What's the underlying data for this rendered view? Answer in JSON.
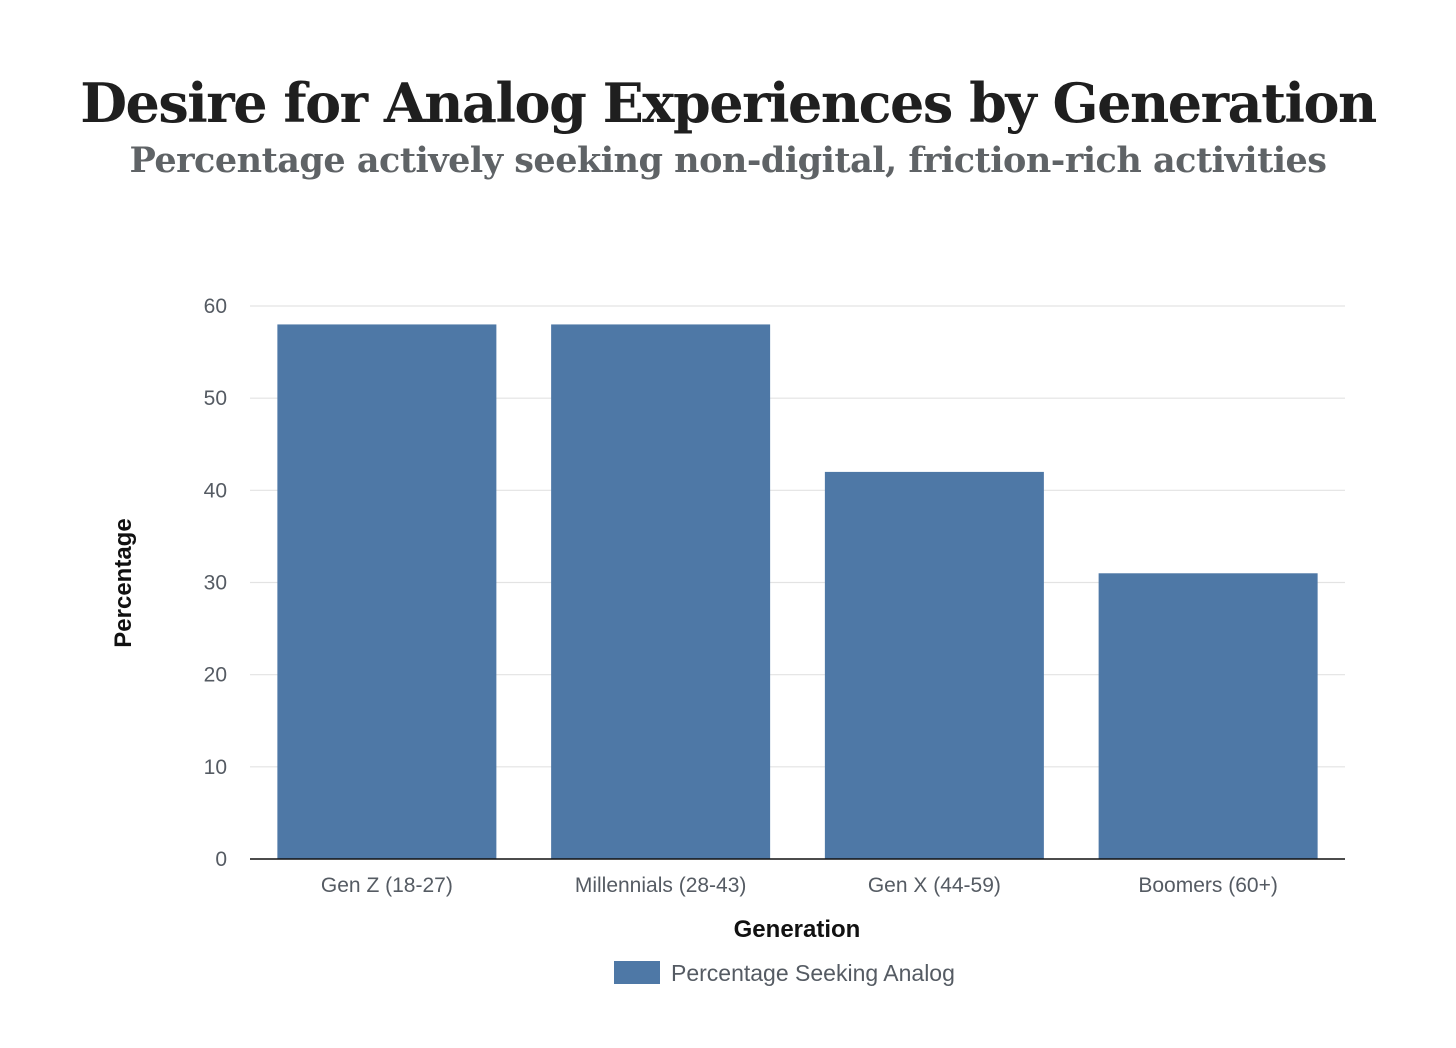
{
  "chart_data": {
    "type": "bar",
    "title": "Desire for Analog Experiences by Generation",
    "subtitle": "Percentage actively seeking non-digital, friction-rich activities",
    "categories": [
      "Gen Z (18-27)",
      "Millennials (28-43)",
      "Gen X (44-59)",
      "Boomers (60+)"
    ],
    "series": [
      {
        "name": "Percentage Seeking Analog",
        "values": [
          58,
          58,
          42,
          31
        ],
        "color": "#4e78a6"
      }
    ],
    "xlabel": "Generation",
    "ylabel": "Percentage",
    "ylim": [
      0,
      60
    ],
    "yticks": [
      "0",
      "10",
      "20",
      "30",
      "40",
      "50",
      "60"
    ],
    "grid": true,
    "legend_position": "bottom"
  }
}
